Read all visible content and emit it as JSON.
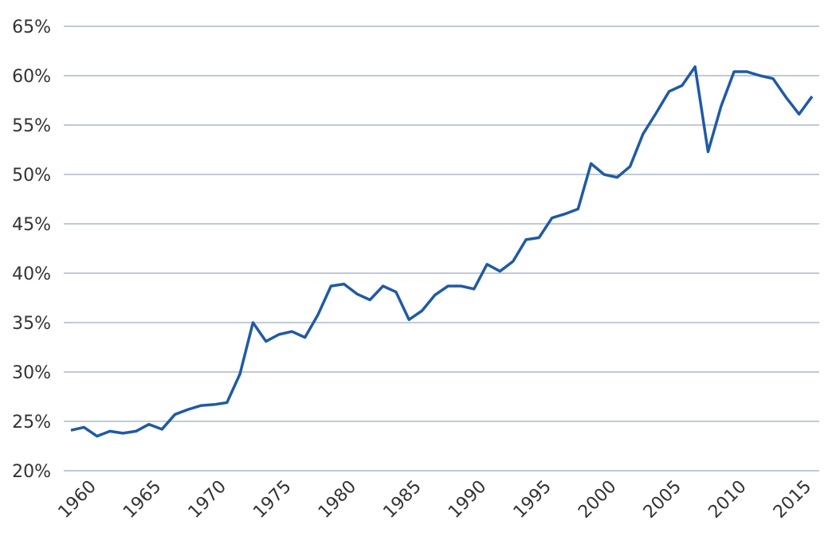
{
  "chart_data": {
    "type": "line",
    "x": [
      1958,
      1959,
      1960,
      1961,
      1962,
      1963,
      1964,
      1965,
      1966,
      1967,
      1968,
      1969,
      1970,
      1971,
      1972,
      1973,
      1974,
      1975,
      1976,
      1977,
      1978,
      1979,
      1980,
      1981,
      1982,
      1983,
      1984,
      1985,
      1986,
      1987,
      1988,
      1989,
      1990,
      1991,
      1992,
      1993,
      1994,
      1995,
      1996,
      1997,
      1998,
      1999,
      2000,
      2001,
      2002,
      2003,
      2004,
      2005,
      2006,
      2007,
      2008,
      2009,
      2010,
      2011,
      2012,
      2013,
      2014,
      2015
    ],
    "series": [
      {
        "color": "#1f5aa5",
        "values": [
          24.1,
          24.4,
          23.5,
          24.0,
          23.8,
          24.0,
          24.7,
          24.2,
          25.7,
          26.2,
          26.6,
          26.7,
          26.9,
          29.8,
          35.0,
          33.1,
          33.8,
          34.1,
          33.5,
          35.8,
          38.7,
          38.9,
          37.9,
          37.3,
          38.7,
          38.1,
          35.3,
          36.2,
          37.8,
          38.7,
          38.7,
          38.4,
          40.9,
          40.2,
          41.2,
          43.4,
          43.6,
          45.6,
          46.0,
          46.5,
          51.1,
          50.0,
          49.7,
          50.8,
          54.1,
          56.2,
          58.4,
          59.0,
          60.9,
          52.3,
          56.9,
          60.4,
          60.4,
          60.0,
          59.7,
          57.8,
          56.1,
          57.9
        ]
      }
    ],
    "xlim": [
      1958,
      2015
    ],
    "xticks": [
      1960,
      1965,
      1970,
      1975,
      1980,
      1985,
      1990,
      1995,
      2000,
      2005,
      2010,
      2015
    ],
    "ylim": [
      20,
      65
    ],
    "yticks": [
      {
        "value": 20,
        "label": "20%"
      },
      {
        "value": 25,
        "label": "25%"
      },
      {
        "value": 30,
        "label": "30%"
      },
      {
        "value": 35,
        "label": "35%"
      },
      {
        "value": 40,
        "label": "40%"
      },
      {
        "value": 45,
        "label": "45%"
      },
      {
        "value": 50,
        "label": "50%"
      },
      {
        "value": 55,
        "label": "55%"
      },
      {
        "value": 60,
        "label": "60%"
      },
      {
        "value": 65,
        "label": "65%"
      }
    ],
    "grid": true
  }
}
